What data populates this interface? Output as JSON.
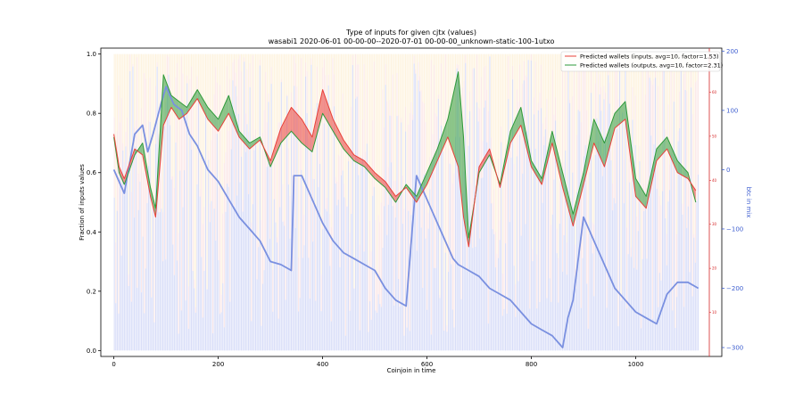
{
  "chart_data": {
    "type": "line",
    "title": "Type of inputs for given cjtx (values)",
    "subtitle": "wasabi1 2020-06-01 00-00-00--2020-07-01 00-00-00_unknown-static-100-1utxo",
    "xlabel": "Coinjoin in time",
    "ylabel": "Fraction of inputs values",
    "y2label": "btc in mix",
    "xlim": [
      -25,
      1165
    ],
    "ylim": [
      -0.02,
      1.02
    ],
    "y2lim": [
      -315,
      205
    ],
    "y3lim": [
      0,
      70
    ],
    "xticks": [
      "0",
      "200",
      "400",
      "600",
      "800",
      "1000"
    ],
    "yticks": [
      "0.0",
      "0.2",
      "0.4",
      "0.6",
      "0.8",
      "1.0"
    ],
    "y2ticks": [
      "−300",
      "−200",
      "−100",
      "0",
      "100",
      "200"
    ],
    "y3ticks": [
      "10",
      "20",
      "30",
      "40",
      "50",
      "60"
    ],
    "legend_position": "top-right",
    "colors": {
      "inputs": "#e8403a",
      "outputs": "#2e9a3a",
      "btc": "#7a90e0",
      "bars_blue": "#aab6f0",
      "bars_red": "#f4bcbc",
      "bars_yellow": "#f8dca4"
    },
    "series": [
      {
        "name": "Predicted wallets (inputs, avg=10, factor=1.53)",
        "axis": "y",
        "x": [
          0,
          10,
          20,
          30,
          40,
          55,
          70,
          80,
          95,
          110,
          125,
          140,
          160,
          180,
          200,
          220,
          240,
          260,
          280,
          300,
          320,
          340,
          360,
          380,
          400,
          420,
          440,
          460,
          480,
          500,
          520,
          540,
          560,
          580,
          600,
          620,
          640,
          660,
          670,
          680,
          700,
          720,
          740,
          760,
          780,
          800,
          820,
          840,
          860,
          880,
          900,
          920,
          940,
          960,
          980,
          1000,
          1020,
          1040,
          1060,
          1080,
          1100,
          1115
        ],
        "values": [
          0.73,
          0.62,
          0.58,
          0.63,
          0.68,
          0.66,
          0.52,
          0.45,
          0.76,
          0.82,
          0.78,
          0.8,
          0.85,
          0.78,
          0.74,
          0.8,
          0.72,
          0.68,
          0.71,
          0.64,
          0.75,
          0.82,
          0.78,
          0.72,
          0.88,
          0.78,
          0.71,
          0.66,
          0.64,
          0.6,
          0.57,
          0.52,
          0.55,
          0.5,
          0.56,
          0.64,
          0.72,
          0.62,
          0.45,
          0.35,
          0.62,
          0.68,
          0.55,
          0.7,
          0.76,
          0.62,
          0.56,
          0.7,
          0.55,
          0.42,
          0.56,
          0.7,
          0.62,
          0.75,
          0.78,
          0.52,
          0.48,
          0.64,
          0.68,
          0.6,
          0.58,
          0.54
        ]
      },
      {
        "name": "Predicted wallets (outputs, avg=10, factor=2.31)",
        "axis": "y",
        "x": [
          0,
          10,
          20,
          30,
          40,
          55,
          70,
          80,
          95,
          110,
          125,
          140,
          160,
          180,
          200,
          220,
          240,
          260,
          280,
          300,
          320,
          340,
          360,
          380,
          400,
          420,
          440,
          460,
          480,
          500,
          520,
          540,
          560,
          580,
          600,
          620,
          640,
          660,
          670,
          680,
          700,
          720,
          740,
          760,
          780,
          800,
          820,
          840,
          860,
          880,
          900,
          920,
          940,
          960,
          980,
          1000,
          1020,
          1040,
          1060,
          1080,
          1100,
          1115
        ],
        "values": [
          0.72,
          0.6,
          0.56,
          0.61,
          0.66,
          0.7,
          0.55,
          0.48,
          0.93,
          0.86,
          0.84,
          0.82,
          0.88,
          0.82,
          0.78,
          0.86,
          0.74,
          0.7,
          0.72,
          0.62,
          0.7,
          0.74,
          0.7,
          0.67,
          0.8,
          0.74,
          0.68,
          0.64,
          0.62,
          0.58,
          0.55,
          0.5,
          0.56,
          0.52,
          0.6,
          0.68,
          0.78,
          0.94,
          0.72,
          0.38,
          0.6,
          0.66,
          0.56,
          0.74,
          0.82,
          0.64,
          0.58,
          0.74,
          0.6,
          0.46,
          0.6,
          0.78,
          0.7,
          0.8,
          0.84,
          0.58,
          0.52,
          0.68,
          0.72,
          0.64,
          0.6,
          0.5
        ]
      },
      {
        "name": "btc in mix",
        "axis": "y2",
        "x": [
          0,
          20,
          40,
          55,
          65,
          75,
          90,
          100,
          115,
          130,
          145,
          160,
          180,
          200,
          220,
          240,
          260,
          280,
          300,
          320,
          340,
          345,
          360,
          380,
          400,
          420,
          440,
          460,
          480,
          500,
          520,
          540,
          560,
          580,
          600,
          620,
          650,
          660,
          680,
          700,
          720,
          740,
          760,
          780,
          800,
          820,
          840,
          860,
          870,
          880,
          900,
          920,
          940,
          960,
          980,
          1000,
          1020,
          1040,
          1060,
          1080,
          1100,
          1120
        ],
        "values": [
          0,
          -40,
          60,
          75,
          30,
          60,
          110,
          140,
          110,
          100,
          60,
          40,
          0,
          -20,
          -50,
          -80,
          -100,
          -120,
          -155,
          -160,
          -170,
          -10,
          -10,
          -50,
          -90,
          -120,
          -140,
          -150,
          -160,
          -170,
          -200,
          -220,
          -230,
          -10,
          -50,
          -90,
          -150,
          -160,
          -170,
          -180,
          -200,
          -210,
          -220,
          -240,
          -260,
          -270,
          -280,
          -300,
          -250,
          -220,
          -80,
          -120,
          -160,
          -200,
          -220,
          -240,
          -250,
          -260,
          -210,
          -190,
          -190,
          -200
        ]
      }
    ]
  },
  "legend": {
    "inputs_label": "Predicted wallets (inputs, avg=10, factor=1.53)",
    "outputs_label": "Predicted wallets (outputs, avg=10, factor=2.31)"
  }
}
